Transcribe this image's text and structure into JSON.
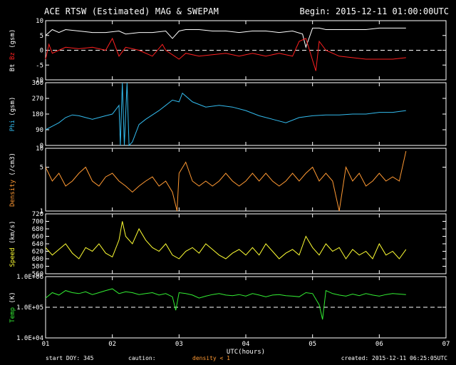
{
  "header": {
    "title": "ACE RTSW (Estimated) MAG & SWEPAM",
    "begin": "Begin: 2015-12-11 01:00:00UTC"
  },
  "footer": {
    "start_doy": "start DOY: 345",
    "caution": "caution:",
    "density_note": "density < 1",
    "created": "created: 2015-12-11 06:25:05UTC"
  },
  "colors": {
    "bt": "#ffffff",
    "bz": "#ff2020",
    "phi": "#33bbee",
    "density": "#ff9933",
    "speed": "#ffff33",
    "temp": "#33ee33"
  },
  "chart_data": {
    "type": "line",
    "xlabel": "UTC(hours)",
    "x_ticks": [
      "01",
      "02",
      "03",
      "04",
      "05",
      "06",
      "07"
    ],
    "x_range_hours": [
      1,
      7
    ],
    "data_end_hour": 6.4,
    "panels": [
      {
        "id": "mag",
        "ylabel_parts": [
          {
            "text": "Bt",
            "color": "#ffffff"
          },
          {
            "text": " Bz",
            "color": "#ff2020"
          },
          {
            "text": " (gsm)",
            "color": "#ffffff"
          }
        ],
        "ylim": [
          -10,
          10
        ],
        "yticks": [
          "10",
          "5",
          "0",
          "-5",
          "-10"
        ],
        "yticks_values": [
          10,
          5,
          0,
          -5,
          -10
        ],
        "dashed_zero": 0,
        "series": [
          {
            "name": "Bt",
            "color": "#ffffff",
            "x": [
              1.0,
              1.1,
              1.2,
              1.3,
              1.5,
              1.7,
              1.9,
              2.1,
              2.2,
              2.4,
              2.6,
              2.8,
              2.9,
              3.0,
              3.1,
              3.3,
              3.5,
              3.7,
              3.9,
              4.1,
              4.3,
              4.5,
              4.7,
              4.85,
              4.9,
              5.0,
              5.1,
              5.2,
              5.4,
              5.6,
              5.8,
              6.0,
              6.2,
              6.4
            ],
            "values": [
              5,
              7,
              6,
              7,
              6.5,
              6,
              6,
              6.5,
              5.5,
              6,
              6,
              6.5,
              4,
              6.5,
              7,
              7,
              6.5,
              6.5,
              6,
              6.5,
              6.5,
              6,
              6.5,
              5.5,
              1,
              7.5,
              7.5,
              7,
              7,
              7,
              7,
              7.5,
              7.5,
              7.5
            ]
          },
          {
            "name": "Bz",
            "color": "#ff2020",
            "x": [
              1.0,
              1.05,
              1.1,
              1.2,
              1.3,
              1.5,
              1.7,
              1.9,
              2.0,
              2.1,
              2.2,
              2.4,
              2.6,
              2.75,
              2.8,
              3.0,
              3.1,
              3.3,
              3.5,
              3.7,
              3.9,
              4.1,
              4.3,
              4.5,
              4.7,
              4.8,
              4.9,
              5.05,
              5.1,
              5.2,
              5.4,
              5.6,
              5.8,
              6.0,
              6.2,
              6.4
            ],
            "values": [
              -3,
              2,
              -1,
              0,
              1,
              0.5,
              1,
              0,
              4,
              -2,
              1,
              0,
              -2,
              2,
              0,
              -3,
              -1,
              -2,
              -1.5,
              -1,
              -2,
              -1,
              -2,
              -1,
              -2,
              3,
              4,
              -7,
              3,
              0,
              -2,
              -2.5,
              -3,
              -3,
              -3,
              -2.5
            ]
          }
        ]
      },
      {
        "id": "phi",
        "ylabel_parts": [
          {
            "text": "Phi",
            "color": "#33bbee"
          },
          {
            "text": " (gsm)",
            "color": "#ffffff"
          }
        ],
        "ylim": [
          0,
          360
        ],
        "yticks": [
          "360",
          "270",
          "180",
          "90",
          "0"
        ],
        "yticks_values": [
          360,
          270,
          180,
          90,
          0
        ],
        "series": [
          {
            "name": "Phi",
            "color": "#33bbee",
            "x": [
              1.0,
              1.1,
              1.2,
              1.3,
              1.4,
              1.5,
              1.6,
              1.7,
              1.8,
              1.9,
              2.0,
              2.1,
              2.12,
              2.15,
              2.18,
              2.22,
              2.25,
              2.3,
              2.4,
              2.5,
              2.7,
              2.8,
              2.9,
              3.0,
              3.05,
              3.2,
              3.4,
              3.6,
              3.8,
              4.0,
              4.2,
              4.4,
              4.6,
              4.8,
              5.0,
              5.2,
              5.4,
              5.6,
              5.8,
              6.0,
              6.2,
              6.4
            ],
            "values": [
              90,
              110,
              130,
              160,
              175,
              170,
              160,
              150,
              160,
              170,
              180,
              230,
              0,
              360,
              0,
              360,
              0,
              20,
              120,
              150,
              200,
              230,
              260,
              250,
              300,
              250,
              220,
              230,
              220,
              200,
              170,
              150,
              130,
              160,
              170,
              175,
              175,
              180,
              180,
              190,
              190,
              200
            ]
          }
        ]
      },
      {
        "id": "density",
        "ylabel_parts": [
          {
            "text": "Density",
            "color": "#ff9933"
          },
          {
            "text": " (/cm3)",
            "color": "#ffffff"
          }
        ],
        "ylim": [
          1,
          10
        ],
        "log": true,
        "yticks": [
          "10",
          "5",
          "1"
        ],
        "yticks_values": [
          10,
          5,
          1
        ],
        "series": [
          {
            "name": "Density",
            "color": "#ff9933",
            "x": [
              1.0,
              1.1,
              1.2,
              1.3,
              1.4,
              1.5,
              1.6,
              1.7,
              1.8,
              1.9,
              2.0,
              2.1,
              2.2,
              2.3,
              2.4,
              2.5,
              2.6,
              2.7,
              2.8,
              2.9,
              2.97,
              3.0,
              3.1,
              3.2,
              3.3,
              3.4,
              3.5,
              3.6,
              3.7,
              3.8,
              3.9,
              4.0,
              4.1,
              4.2,
              4.3,
              4.4,
              4.5,
              4.6,
              4.7,
              4.8,
              4.9,
              5.0,
              5.1,
              5.2,
              5.3,
              5.4,
              5.5,
              5.6,
              5.7,
              5.8,
              5.9,
              6.0,
              6.1,
              6.2,
              6.3,
              6.4
            ],
            "values": [
              5,
              3,
              4,
              2.5,
              3,
              4,
              5,
              3,
              2.5,
              3.5,
              4,
              3,
              2.5,
              2,
              2.5,
              3,
              3.5,
              2.5,
              3,
              2,
              1,
              4,
              6,
              3,
              2.5,
              3,
              2.5,
              3,
              4,
              3,
              2.5,
              3,
              4,
              3,
              4,
              3,
              2.5,
              3,
              4,
              3,
              4,
              5,
              3,
              4,
              3,
              1,
              5,
              3,
              4,
              2.5,
              3,
              4,
              3,
              3.5,
              3,
              9
            ]
          }
        ]
      },
      {
        "id": "speed",
        "ylabel_parts": [
          {
            "text": "Speed",
            "color": "#ffff33"
          },
          {
            "text": " (km/s)",
            "color": "#ffffff"
          }
        ],
        "ylim": [
          560,
          720
        ],
        "yticks": [
          "720",
          "700",
          "680",
          "660",
          "640",
          "620",
          "600",
          "580",
          "560"
        ],
        "yticks_values": [
          720,
          700,
          680,
          660,
          640,
          620,
          600,
          580,
          560
        ],
        "series": [
          {
            "name": "Speed",
            "color": "#ffff33",
            "x": [
              1.0,
              1.1,
              1.2,
              1.3,
              1.4,
              1.5,
              1.6,
              1.7,
              1.8,
              1.9,
              2.0,
              2.1,
              2.15,
              2.2,
              2.3,
              2.4,
              2.5,
              2.6,
              2.7,
              2.8,
              2.9,
              3.0,
              3.1,
              3.2,
              3.3,
              3.4,
              3.5,
              3.6,
              3.7,
              3.8,
              3.9,
              4.0,
              4.1,
              4.2,
              4.3,
              4.4,
              4.5,
              4.6,
              4.7,
              4.8,
              4.9,
              5.0,
              5.1,
              5.2,
              5.3,
              5.4,
              5.5,
              5.6,
              5.7,
              5.8,
              5.9,
              6.0,
              6.1,
              6.2,
              6.3,
              6.4
            ],
            "values": [
              630,
              610,
              625,
              640,
              615,
              600,
              630,
              620,
              640,
              615,
              605,
              650,
              700,
              660,
              640,
              680,
              650,
              630,
              620,
              640,
              610,
              600,
              620,
              630,
              615,
              640,
              625,
              610,
              600,
              615,
              625,
              610,
              630,
              610,
              640,
              620,
              600,
              615,
              625,
              610,
              660,
              630,
              610,
              640,
              620,
              630,
              600,
              625,
              610,
              620,
              600,
              640,
              610,
              620,
              600,
              625
            ]
          }
        ]
      },
      {
        "id": "temp",
        "ylabel_parts": [
          {
            "text": "Temp",
            "color": "#33ee33"
          },
          {
            "text": " (K)",
            "color": "#ffffff"
          }
        ],
        "ylim": [
          10000,
          1000000
        ],
        "log": true,
        "yticks": [
          "1.0E+06",
          "1.0E+05",
          "1.0E+04"
        ],
        "yticks_values": [
          1000000,
          100000,
          10000
        ],
        "dashed_zero": 100000,
        "series": [
          {
            "name": "Temp",
            "color": "#33ee33",
            "x": [
              1.0,
              1.1,
              1.2,
              1.3,
              1.4,
              1.5,
              1.6,
              1.7,
              1.8,
              1.9,
              2.0,
              2.1,
              2.2,
              2.3,
              2.4,
              2.5,
              2.6,
              2.7,
              2.8,
              2.9,
              2.95,
              3.0,
              3.1,
              3.2,
              3.3,
              3.4,
              3.5,
              3.6,
              3.7,
              3.8,
              3.9,
              4.0,
              4.1,
              4.2,
              4.3,
              4.4,
              4.5,
              4.6,
              4.7,
              4.8,
              4.9,
              5.0,
              5.1,
              5.15,
              5.2,
              5.3,
              5.4,
              5.5,
              5.6,
              5.7,
              5.8,
              5.9,
              6.0,
              6.1,
              6.2,
              6.3,
              6.4
            ],
            "values": [
              200000,
              300000,
              250000,
              350000,
              300000,
              280000,
              320000,
              260000,
              300000,
              350000,
              400000,
              280000,
              320000,
              300000,
              260000,
              280000,
              300000,
              250000,
              280000,
              220000,
              80000,
              300000,
              280000,
              250000,
              200000,
              230000,
              260000,
              280000,
              250000,
              240000,
              260000,
              230000,
              280000,
              250000,
              220000,
              250000,
              260000,
              240000,
              230000,
              220000,
              300000,
              280000,
              120000,
              40000,
              350000,
              280000,
              250000,
              230000,
              270000,
              240000,
              280000,
              250000,
              230000,
              260000,
              280000,
              270000,
              260000
            ]
          }
        ]
      }
    ]
  }
}
